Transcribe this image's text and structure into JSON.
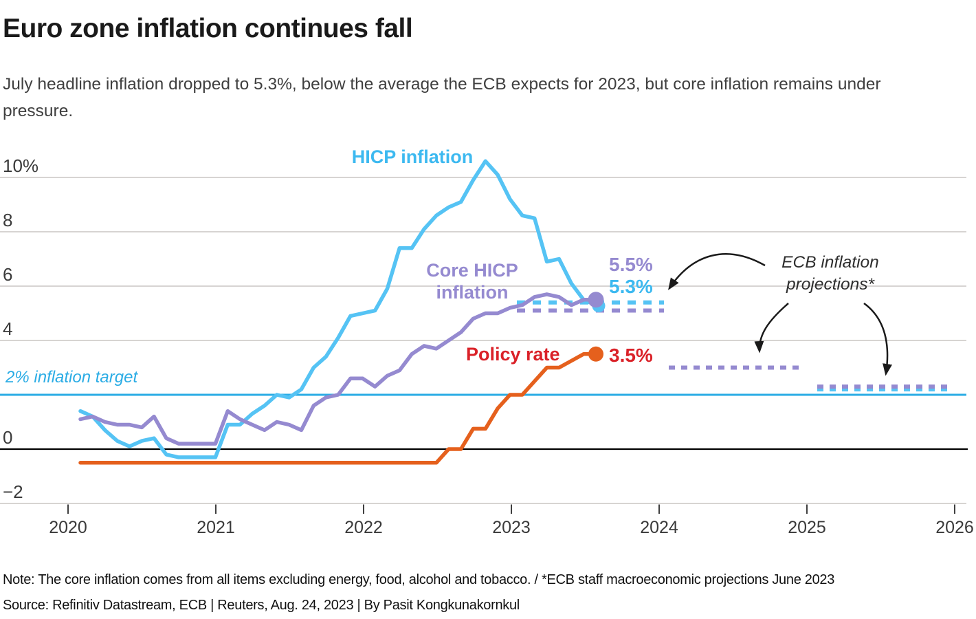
{
  "header": {
    "title": "Euro zone inflation continues fall",
    "subtitle": "July headline inflation dropped to 5.3%, below the average the ECB expects for 2023, but core inflation remains under pressure."
  },
  "footer": {
    "note": "Note: The core inflation comes from all items excluding energy, food, alcohol and tobacco. / *ECB staff macroeconomic projections June 2023",
    "source": "Source: Refinitiv Datastream, ECB | Reuters, Aug. 24, 2023 | By Pasit Kongkunakornkul"
  },
  "colors": {
    "hicp": "#55c3f4",
    "hicp_label": "#3cb9f0",
    "core": "#958ad0",
    "policy_line": "#e5601d",
    "policy_label": "#da2128",
    "target": "#2aace5",
    "grid": "#cac6c4",
    "zero": "#000000",
    "axis_text": "#3a3a3a",
    "arrow": "#1a1a1a"
  },
  "chart_data": {
    "type": "line",
    "unit": "percent, year-on-year",
    "x_monthly_start": "2020-01",
    "x_monthly_end": "2023-07",
    "x_ticks": [
      "2020",
      "2021",
      "2022",
      "2023",
      "2024",
      "2025",
      "2026"
    ],
    "y_ticks": [
      {
        "value": 10,
        "label": "10%"
      },
      {
        "value": 8,
        "label": "8"
      },
      {
        "value": 6,
        "label": "6"
      },
      {
        "value": 4,
        "label": "4"
      },
      {
        "value": 0,
        "label": "0"
      },
      {
        "value": -2,
        "label": "−2"
      }
    ],
    "ylim": [
      -2.9,
      11.2
    ],
    "grid": "horizontal",
    "reference_line": {
      "label": "2% inflation target",
      "value": 2
    },
    "series": [
      {
        "id": "hicp",
        "label": "HICP inflation",
        "latest_label": "5.3%",
        "values": [
          1.4,
          1.2,
          0.7,
          0.3,
          0.1,
          0.3,
          0.4,
          -0.2,
          -0.3,
          -0.3,
          -0.3,
          -0.3,
          0.9,
          0.9,
          1.3,
          1.6,
          2.0,
          1.9,
          2.2,
          3.0,
          3.4,
          4.1,
          4.9,
          5.0,
          5.1,
          5.9,
          7.4,
          7.4,
          8.1,
          8.6,
          8.9,
          9.1,
          9.9,
          10.6,
          10.1,
          9.2,
          8.6,
          8.5,
          6.9,
          7.0,
          6.1,
          5.5,
          5.3
        ]
      },
      {
        "id": "core",
        "label": "Core HICP inflation",
        "latest_label": "5.5%",
        "values": [
          1.1,
          1.2,
          1.0,
          0.9,
          0.9,
          0.8,
          1.2,
          0.4,
          0.2,
          0.2,
          0.2,
          0.2,
          1.4,
          1.1,
          0.9,
          0.7,
          1.0,
          0.9,
          0.7,
          1.6,
          1.9,
          2.0,
          2.6,
          2.6,
          2.3,
          2.7,
          2.9,
          3.5,
          3.8,
          3.7,
          4.0,
          4.3,
          4.8,
          5.0,
          5.0,
          5.2,
          5.3,
          5.6,
          5.7,
          5.6,
          5.3,
          5.5,
          5.5
        ]
      },
      {
        "id": "policy",
        "label": "Policy rate",
        "latest_label": "3.5%",
        "values": [
          -0.5,
          -0.5,
          -0.5,
          -0.5,
          -0.5,
          -0.5,
          -0.5,
          -0.5,
          -0.5,
          -0.5,
          -0.5,
          -0.5,
          -0.5,
          -0.5,
          -0.5,
          -0.5,
          -0.5,
          -0.5,
          -0.5,
          -0.5,
          -0.5,
          -0.5,
          -0.5,
          -0.5,
          -0.5,
          -0.5,
          -0.5,
          -0.5,
          -0.5,
          -0.5,
          0.0,
          0.0,
          0.75,
          0.75,
          1.5,
          2.0,
          2.0,
          2.5,
          3.0,
          3.0,
          3.25,
          3.5,
          3.5
        ]
      }
    ],
    "projections": {
      "label_lines": [
        "ECB inflation",
        "projections*"
      ],
      "segments": [
        {
          "series": "hicp",
          "period": "2023",
          "value": 5.4
        },
        {
          "series": "core",
          "period": "2023",
          "value": 5.1
        },
        {
          "series": "hicp",
          "period": "2024",
          "value": 3.0
        },
        {
          "series": "core",
          "period": "2024",
          "value": 3.0
        },
        {
          "series": "hicp",
          "period": "2025",
          "value": 2.2
        },
        {
          "series": "core",
          "period": "2025",
          "value": 2.3
        }
      ]
    }
  }
}
